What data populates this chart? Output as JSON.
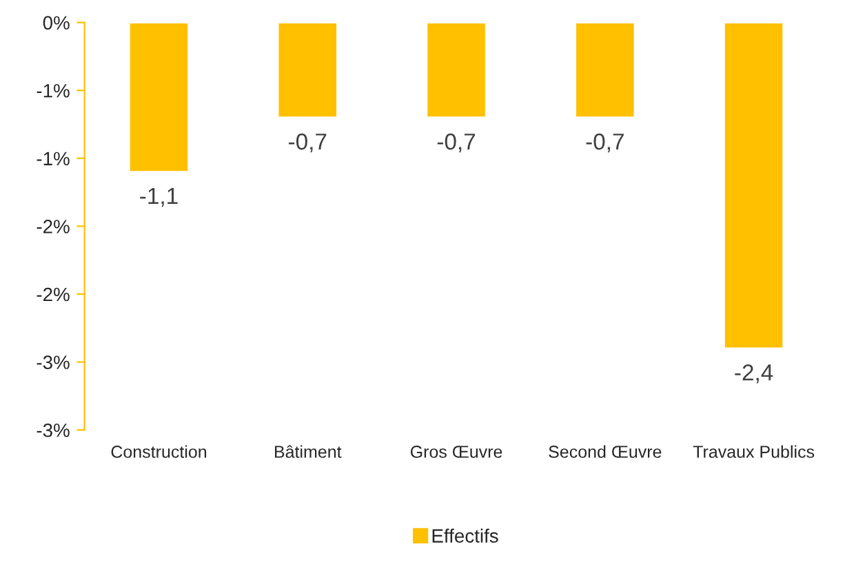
{
  "chart_data": {
    "type": "bar",
    "categories": [
      "Construction",
      "Bâtiment",
      "Gros Œuvre",
      "Second Œuvre",
      "Travaux Publics"
    ],
    "series": [
      {
        "name": "Effectifs",
        "color": "#ffc000",
        "values": [
          -1.1,
          -0.7,
          -0.7,
          -0.7,
          -2.4
        ],
        "value_labels": [
          "-1,1",
          "-0,7",
          "-0,7",
          "-0,7",
          "-2,4"
        ]
      }
    ],
    "ylim": [
      -3,
      0
    ],
    "yticks": [
      {
        "value": 0,
        "label": "0%"
      },
      {
        "value": -0.5,
        "label": "-1%"
      },
      {
        "value": -1,
        "label": "-1%"
      },
      {
        "value": -1.5,
        "label": "-2%"
      },
      {
        "value": -2,
        "label": "-2%"
      },
      {
        "value": -2.5,
        "label": "-3%"
      },
      {
        "value": -3,
        "label": "-3%"
      }
    ],
    "grid": false,
    "legend": "bottom"
  }
}
